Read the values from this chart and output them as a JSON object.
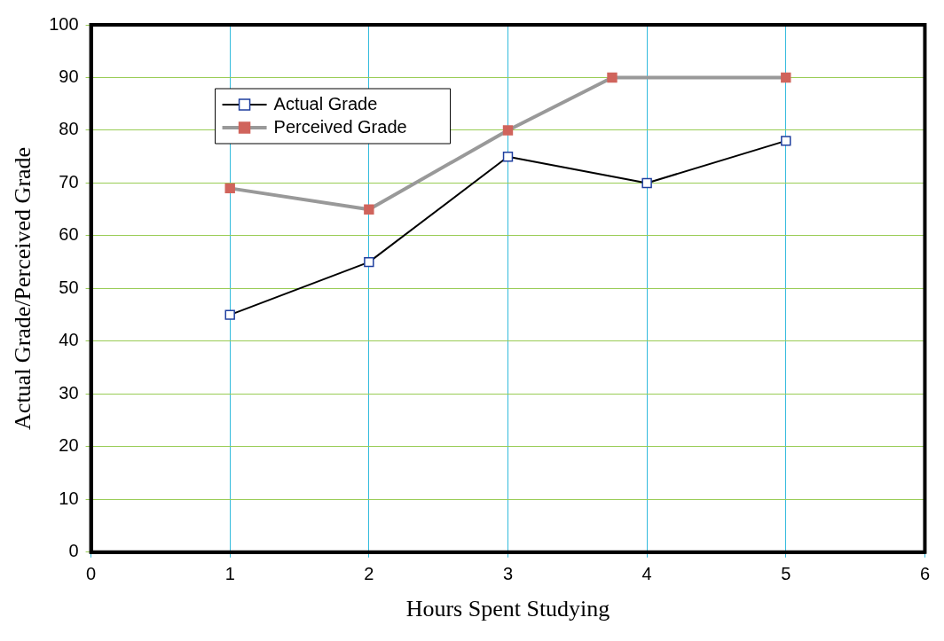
{
  "chart_data": {
    "type": "line",
    "xlabel": "Hours Spent Studying",
    "ylabel": "Actual Grade/Perceived Grade",
    "xlim": [
      0,
      6
    ],
    "xticks": [
      0,
      1,
      2,
      3,
      4,
      5,
      6
    ],
    "ylim": [
      0,
      100
    ],
    "yticks": [
      0,
      10,
      20,
      30,
      40,
      50,
      60,
      70,
      80,
      90,
      100
    ],
    "grid": true,
    "legend": "top left",
    "marker": "square",
    "series": [
      {
        "name": "Actual Grade",
        "color": "#000000",
        "x": [
          1,
          2,
          3,
          4,
          5
        ],
        "values": [
          45,
          55,
          75,
          70,
          78
        ]
      },
      {
        "name": "Perceived Grade",
        "color": "#999999",
        "x": [
          1,
          2,
          3,
          3.75,
          5
        ],
        "values": [
          69,
          65,
          80,
          90,
          90
        ]
      }
    ]
  }
}
